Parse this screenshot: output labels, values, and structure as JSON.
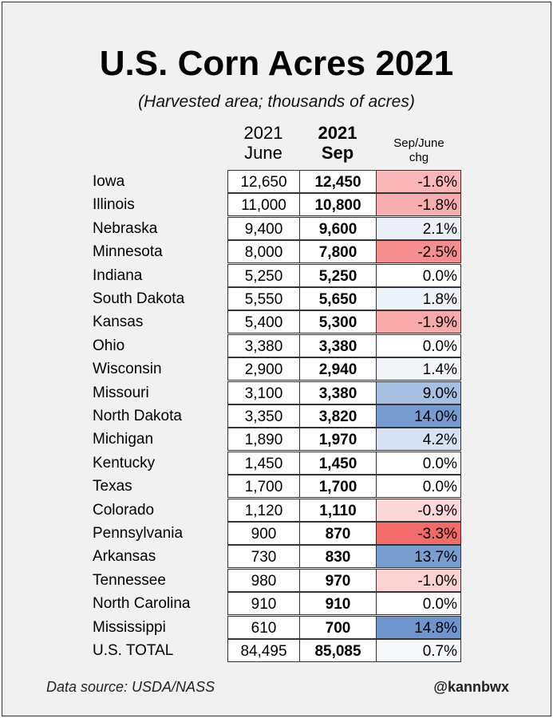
{
  "title": "U.S. Corn Acres 2021",
  "subtitle": "(Harvested area; thousands of acres)",
  "headers": {
    "june_year": "2021",
    "june": "June",
    "sep_year": "2021",
    "sep": "Sep",
    "chg_1": "Sep/June",
    "chg_2": "chg"
  },
  "footer": {
    "source": "Data source: USDA/NASS",
    "handle": "@kannbwx"
  },
  "colors": {
    "negative": "#f26b6b",
    "positive": "#6f95cc",
    "neutral": "#ffffff"
  },
  "chart_data": {
    "type": "table",
    "title": "U.S. Corn Acres 2021",
    "subtitle": "(Harvested area; thousands of acres)",
    "columns": [
      "2021 June",
      "2021 Sep",
      "Sep/June chg"
    ],
    "rows": [
      {
        "state": "Iowa",
        "june": "12,650",
        "sep": "12,450",
        "chg": "-1.6%",
        "chg_value": -1.6
      },
      {
        "state": "Illinois",
        "june": "11,000",
        "sep": "10,800",
        "chg": "-1.8%",
        "chg_value": -1.8
      },
      {
        "state": "Nebraska",
        "june": "9,400",
        "sep": "9,600",
        "chg": "2.1%",
        "chg_value": 2.1
      },
      {
        "state": "Minnesota",
        "june": "8,000",
        "sep": "7,800",
        "chg": "-2.5%",
        "chg_value": -2.5
      },
      {
        "state": "Indiana",
        "june": "5,250",
        "sep": "5,250",
        "chg": "0.0%",
        "chg_value": 0.0
      },
      {
        "state": "South Dakota",
        "june": "5,550",
        "sep": "5,650",
        "chg": "1.8%",
        "chg_value": 1.8
      },
      {
        "state": "Kansas",
        "june": "5,400",
        "sep": "5,300",
        "chg": "-1.9%",
        "chg_value": -1.9
      },
      {
        "state": "Ohio",
        "june": "3,380",
        "sep": "3,380",
        "chg": "0.0%",
        "chg_value": 0.0
      },
      {
        "state": "Wisconsin",
        "june": "2,900",
        "sep": "2,940",
        "chg": "1.4%",
        "chg_value": 1.4
      },
      {
        "state": "Missouri",
        "june": "3,100",
        "sep": "3,380",
        "chg": "9.0%",
        "chg_value": 9.0
      },
      {
        "state": "North Dakota",
        "june": "3,350",
        "sep": "3,820",
        "chg": "14.0%",
        "chg_value": 14.0
      },
      {
        "state": "Michigan",
        "june": "1,890",
        "sep": "1,970",
        "chg": "4.2%",
        "chg_value": 4.2
      },
      {
        "state": "Kentucky",
        "june": "1,450",
        "sep": "1,450",
        "chg": "0.0%",
        "chg_value": 0.0
      },
      {
        "state": "Texas",
        "june": "1,700",
        "sep": "1,700",
        "chg": "0.0%",
        "chg_value": 0.0
      },
      {
        "state": "Colorado",
        "june": "1,120",
        "sep": "1,110",
        "chg": "-0.9%",
        "chg_value": -0.9
      },
      {
        "state": "Pennsylvania",
        "june": "900",
        "sep": "870",
        "chg": "-3.3%",
        "chg_value": -3.3
      },
      {
        "state": "Arkansas",
        "june": "730",
        "sep": "830",
        "chg": "13.7%",
        "chg_value": 13.7
      },
      {
        "state": "Tennessee",
        "june": "980",
        "sep": "970",
        "chg": "-1.0%",
        "chg_value": -1.0
      },
      {
        "state": "North Carolina",
        "june": "910",
        "sep": "910",
        "chg": "0.0%",
        "chg_value": 0.0
      },
      {
        "state": "Mississippi",
        "june": "610",
        "sep": "700",
        "chg": "14.8%",
        "chg_value": 14.8
      },
      {
        "state": "U.S. TOTAL",
        "june": "84,495",
        "sep": "85,085",
        "chg": "0.7%",
        "chg_value": 0.7
      }
    ]
  }
}
